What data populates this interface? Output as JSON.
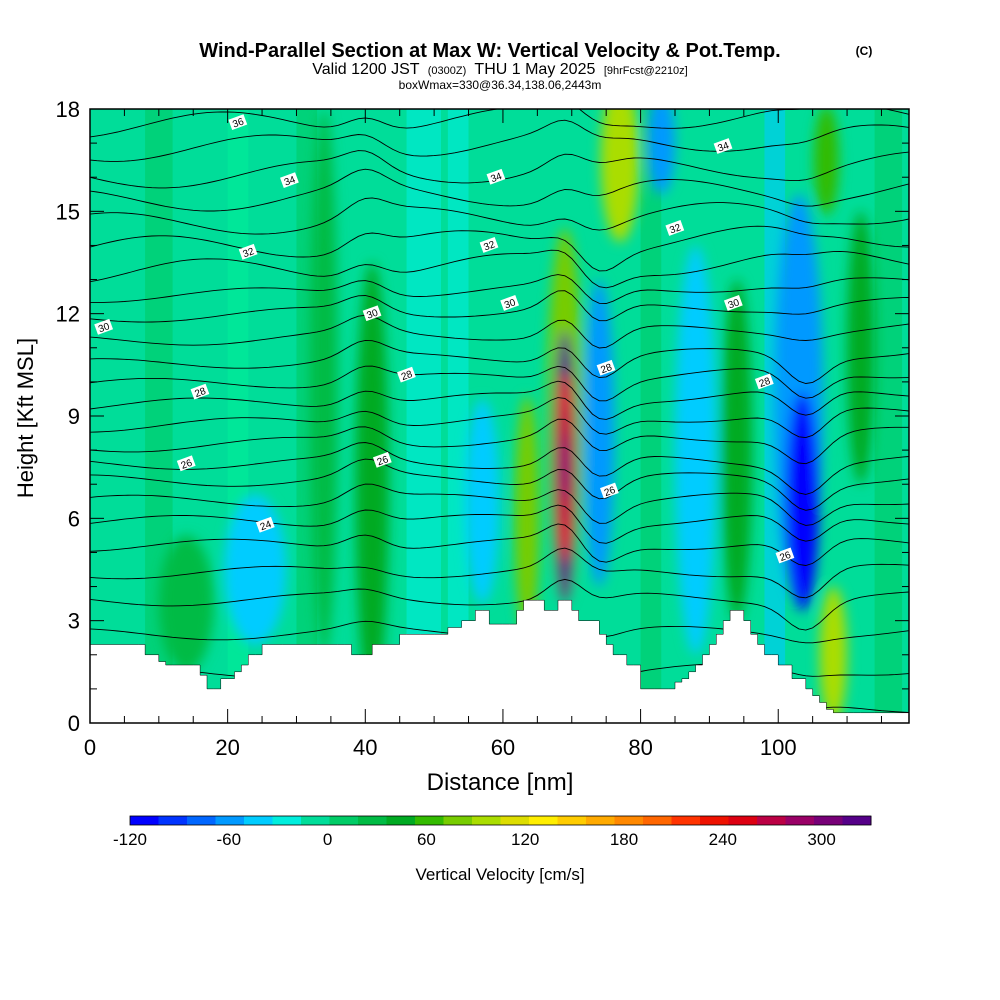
{
  "title": {
    "main": "Wind-Parallel Section at Max W: Vertical Velocity & Pot.Temp.",
    "copyright": "(C)",
    "valid_pre": "Valid 1200 JST",
    "valid_utc": "(0300Z)",
    "valid_post": "THU 1 May 2025",
    "forecast": "[9hrFcst@2210z]",
    "boxinfo": "boxWmax=330@36.34,138.06,2443m"
  },
  "colorbar": {
    "label": "Vertical Velocity [cm/s]",
    "colors": [
      "#0000ff",
      "#0033ff",
      "#0066ff",
      "#0099ff",
      "#00ccff",
      "#00eedd",
      "#00dd99",
      "#00cc66",
      "#00bb44",
      "#00aa22",
      "#33bb00",
      "#77cc00",
      "#aadd00",
      "#dddd00",
      "#ffee00",
      "#ffcc00",
      "#ffaa00",
      "#ff8800",
      "#ff6600",
      "#ff3300",
      "#ee1100",
      "#dd0011",
      "#bb0044",
      "#990066",
      "#770077",
      "#550088"
    ],
    "levels": [
      -120,
      -105,
      -90,
      -75,
      -60,
      -45,
      -30,
      -15,
      0,
      15,
      30,
      45,
      60,
      75,
      90,
      105,
      120,
      135,
      150,
      165,
      180,
      195,
      210,
      225,
      240,
      255,
      270,
      285,
      300,
      315,
      330
    ],
    "tick_labels": [
      "-120",
      "-60",
      "0",
      "60",
      "120",
      "180",
      "240",
      "300"
    ]
  },
  "chart_data": {
    "type": "heatmap",
    "title": "Wind-Parallel Section at Max W: Vertical Velocity & Pot.Temp.",
    "xlabel": "Distance [nm]",
    "ylabel": "Height [Kft MSL]",
    "xlim": [
      0,
      119
    ],
    "ylim": [
      0,
      18
    ],
    "x_ticks": [
      0,
      20,
      40,
      60,
      80,
      100
    ],
    "y_ticks": [
      0,
      3,
      6,
      9,
      12,
      15,
      18
    ],
    "x_tick_labels": [
      "0",
      "20",
      "40",
      "60",
      "80",
      "100"
    ],
    "y_tick_labels": [
      "0",
      "3",
      "6",
      "9",
      "12",
      "15",
      "18"
    ],
    "colorbar_label": "Vertical Velocity [cm/s]",
    "colorbar_range": [
      -120,
      330
    ],
    "terrain": {
      "x": [
        0,
        7,
        8,
        10,
        11,
        12,
        15,
        16,
        17,
        18,
        19,
        20,
        21,
        22,
        23,
        24,
        25,
        26,
        28,
        30,
        33,
        36,
        37,
        38,
        39,
        40,
        41,
        43,
        45,
        46,
        48,
        50,
        52,
        54,
        55,
        56,
        57,
        58,
        60,
        61,
        62,
        63,
        64,
        65,
        66,
        67,
        68,
        69,
        70,
        71,
        72,
        74,
        75,
        76,
        77,
        78,
        79,
        80,
        81,
        82,
        84,
        85,
        86,
        87,
        88,
        89,
        90,
        91,
        92,
        93,
        94,
        95,
        96,
        97,
        98,
        99,
        100,
        101,
        102,
        104,
        105,
        106,
        107,
        108,
        110,
        111,
        112,
        114,
        119
      ],
      "h": [
        2.3,
        2.3,
        2.0,
        1.8,
        1.7,
        1.7,
        1.7,
        1.4,
        1.0,
        1.0,
        1.3,
        1.3,
        1.5,
        1.7,
        2.0,
        2.0,
        2.3,
        2.3,
        2.3,
        2.3,
        2.3,
        2.3,
        2.3,
        2.0,
        2.0,
        2.0,
        2.3,
        2.3,
        2.6,
        2.6,
        2.6,
        2.6,
        2.8,
        3.0,
        3.0,
        3.3,
        3.3,
        2.9,
        2.9,
        2.9,
        3.3,
        3.6,
        3.6,
        3.6,
        3.3,
        3.3,
        3.6,
        3.6,
        3.3,
        3.0,
        3.0,
        2.6,
        2.3,
        2.0,
        2.0,
        1.7,
        1.7,
        1.0,
        1.0,
        1.0,
        1.0,
        1.2,
        1.3,
        1.5,
        1.7,
        2.0,
        2.3,
        2.6,
        3.0,
        3.3,
        3.3,
        3.0,
        2.6,
        2.3,
        2.0,
        2.0,
        1.7,
        1.7,
        1.3,
        1.0,
        0.8,
        0.6,
        0.4,
        0.3,
        0.3,
        0.3,
        0.3,
        0.3,
        0.3
      ]
    },
    "vertical_velocity_features": [
      {
        "x": 69,
        "y": 7.5,
        "wx": 1.6,
        "wy": 4.0,
        "value": 330
      },
      {
        "x": 69,
        "y": 9.0,
        "wx": 2.6,
        "wy": 5.5,
        "value": 80
      },
      {
        "x": 63.5,
        "y": 6.0,
        "wx": 1.8,
        "wy": 3.6,
        "value": 75
      },
      {
        "x": 77,
        "y": 16.5,
        "wx": 2.8,
        "wy": 2.4,
        "value": 90
      },
      {
        "x": 74,
        "y": 8.5,
        "wx": 2.2,
        "wy": 4.5,
        "value": -70
      },
      {
        "x": 103.5,
        "y": 6.5,
        "wx": 2.4,
        "wy": 3.2,
        "value": -125
      },
      {
        "x": 103,
        "y": 9.5,
        "wx": 3.5,
        "wy": 6.0,
        "value": -50
      },
      {
        "x": 108,
        "y": 2.0,
        "wx": 2.0,
        "wy": 2.0,
        "value": 90
      },
      {
        "x": 94,
        "y": 8.0,
        "wx": 2.2,
        "wy": 5.0,
        "value": 50
      },
      {
        "x": 41,
        "y": 7.0,
        "wx": 2.4,
        "wy": 6.5,
        "value": 35
      },
      {
        "x": 24,
        "y": 4.5,
        "wx": 4.5,
        "wy": 2.2,
        "value": -45
      },
      {
        "x": 57,
        "y": 6.5,
        "wx": 2.5,
        "wy": 3.0,
        "value": -40
      },
      {
        "x": 88,
        "y": 8.0,
        "wx": 3.0,
        "wy": 6.0,
        "value": -35
      },
      {
        "x": 83,
        "y": 17.0,
        "wx": 2.0,
        "wy": 1.5,
        "value": -70
      },
      {
        "x": 107,
        "y": 16.5,
        "wx": 1.8,
        "wy": 1.6,
        "value": 60
      },
      {
        "x": 34,
        "y": 10.0,
        "wx": 2.0,
        "wy": 8.0,
        "value": 25
      },
      {
        "x": 14,
        "y": 3.5,
        "wx": 4.0,
        "wy": 2.0,
        "value": 20
      },
      {
        "x": 112,
        "y": 11.0,
        "wx": 2.0,
        "wy": 4.0,
        "value": 30
      }
    ],
    "potential_temperature_contours": {
      "unit": "K",
      "labeled_values": [
        36,
        34,
        32,
        30,
        28,
        26,
        24
      ],
      "labels": [
        {
          "text": "36",
          "x": 21.5,
          "y": 17.6
        },
        {
          "text": "34",
          "x": 29,
          "y": 15.9
        },
        {
          "text": "34",
          "x": 59,
          "y": 16.0
        },
        {
          "text": "34",
          "x": 92,
          "y": 16.9
        },
        {
          "text": "32",
          "x": 23,
          "y": 13.8
        },
        {
          "text": "32",
          "x": 58,
          "y": 14.0
        },
        {
          "text": "32",
          "x": 85,
          "y": 14.5
        },
        {
          "text": "30",
          "x": 2,
          "y": 11.6
        },
        {
          "text": "30",
          "x": 41,
          "y": 12.0
        },
        {
          "text": "30",
          "x": 61,
          "y": 12.3
        },
        {
          "text": "30",
          "x": 93.5,
          "y": 12.3
        },
        {
          "text": "28",
          "x": 16,
          "y": 9.7
        },
        {
          "text": "28",
          "x": 46,
          "y": 10.2
        },
        {
          "text": "28",
          "x": 75,
          "y": 10.4
        },
        {
          "text": "28",
          "x": 98,
          "y": 10.0
        },
        {
          "text": "26",
          "x": 14,
          "y": 7.6
        },
        {
          "text": "26",
          "x": 42.5,
          "y": 7.7
        },
        {
          "text": "26",
          "x": 75.5,
          "y": 6.8
        },
        {
          "text": "26",
          "x": 101,
          "y": 4.9
        },
        {
          "text": "24",
          "x": 25.5,
          "y": 5.8
        }
      ]
    }
  }
}
